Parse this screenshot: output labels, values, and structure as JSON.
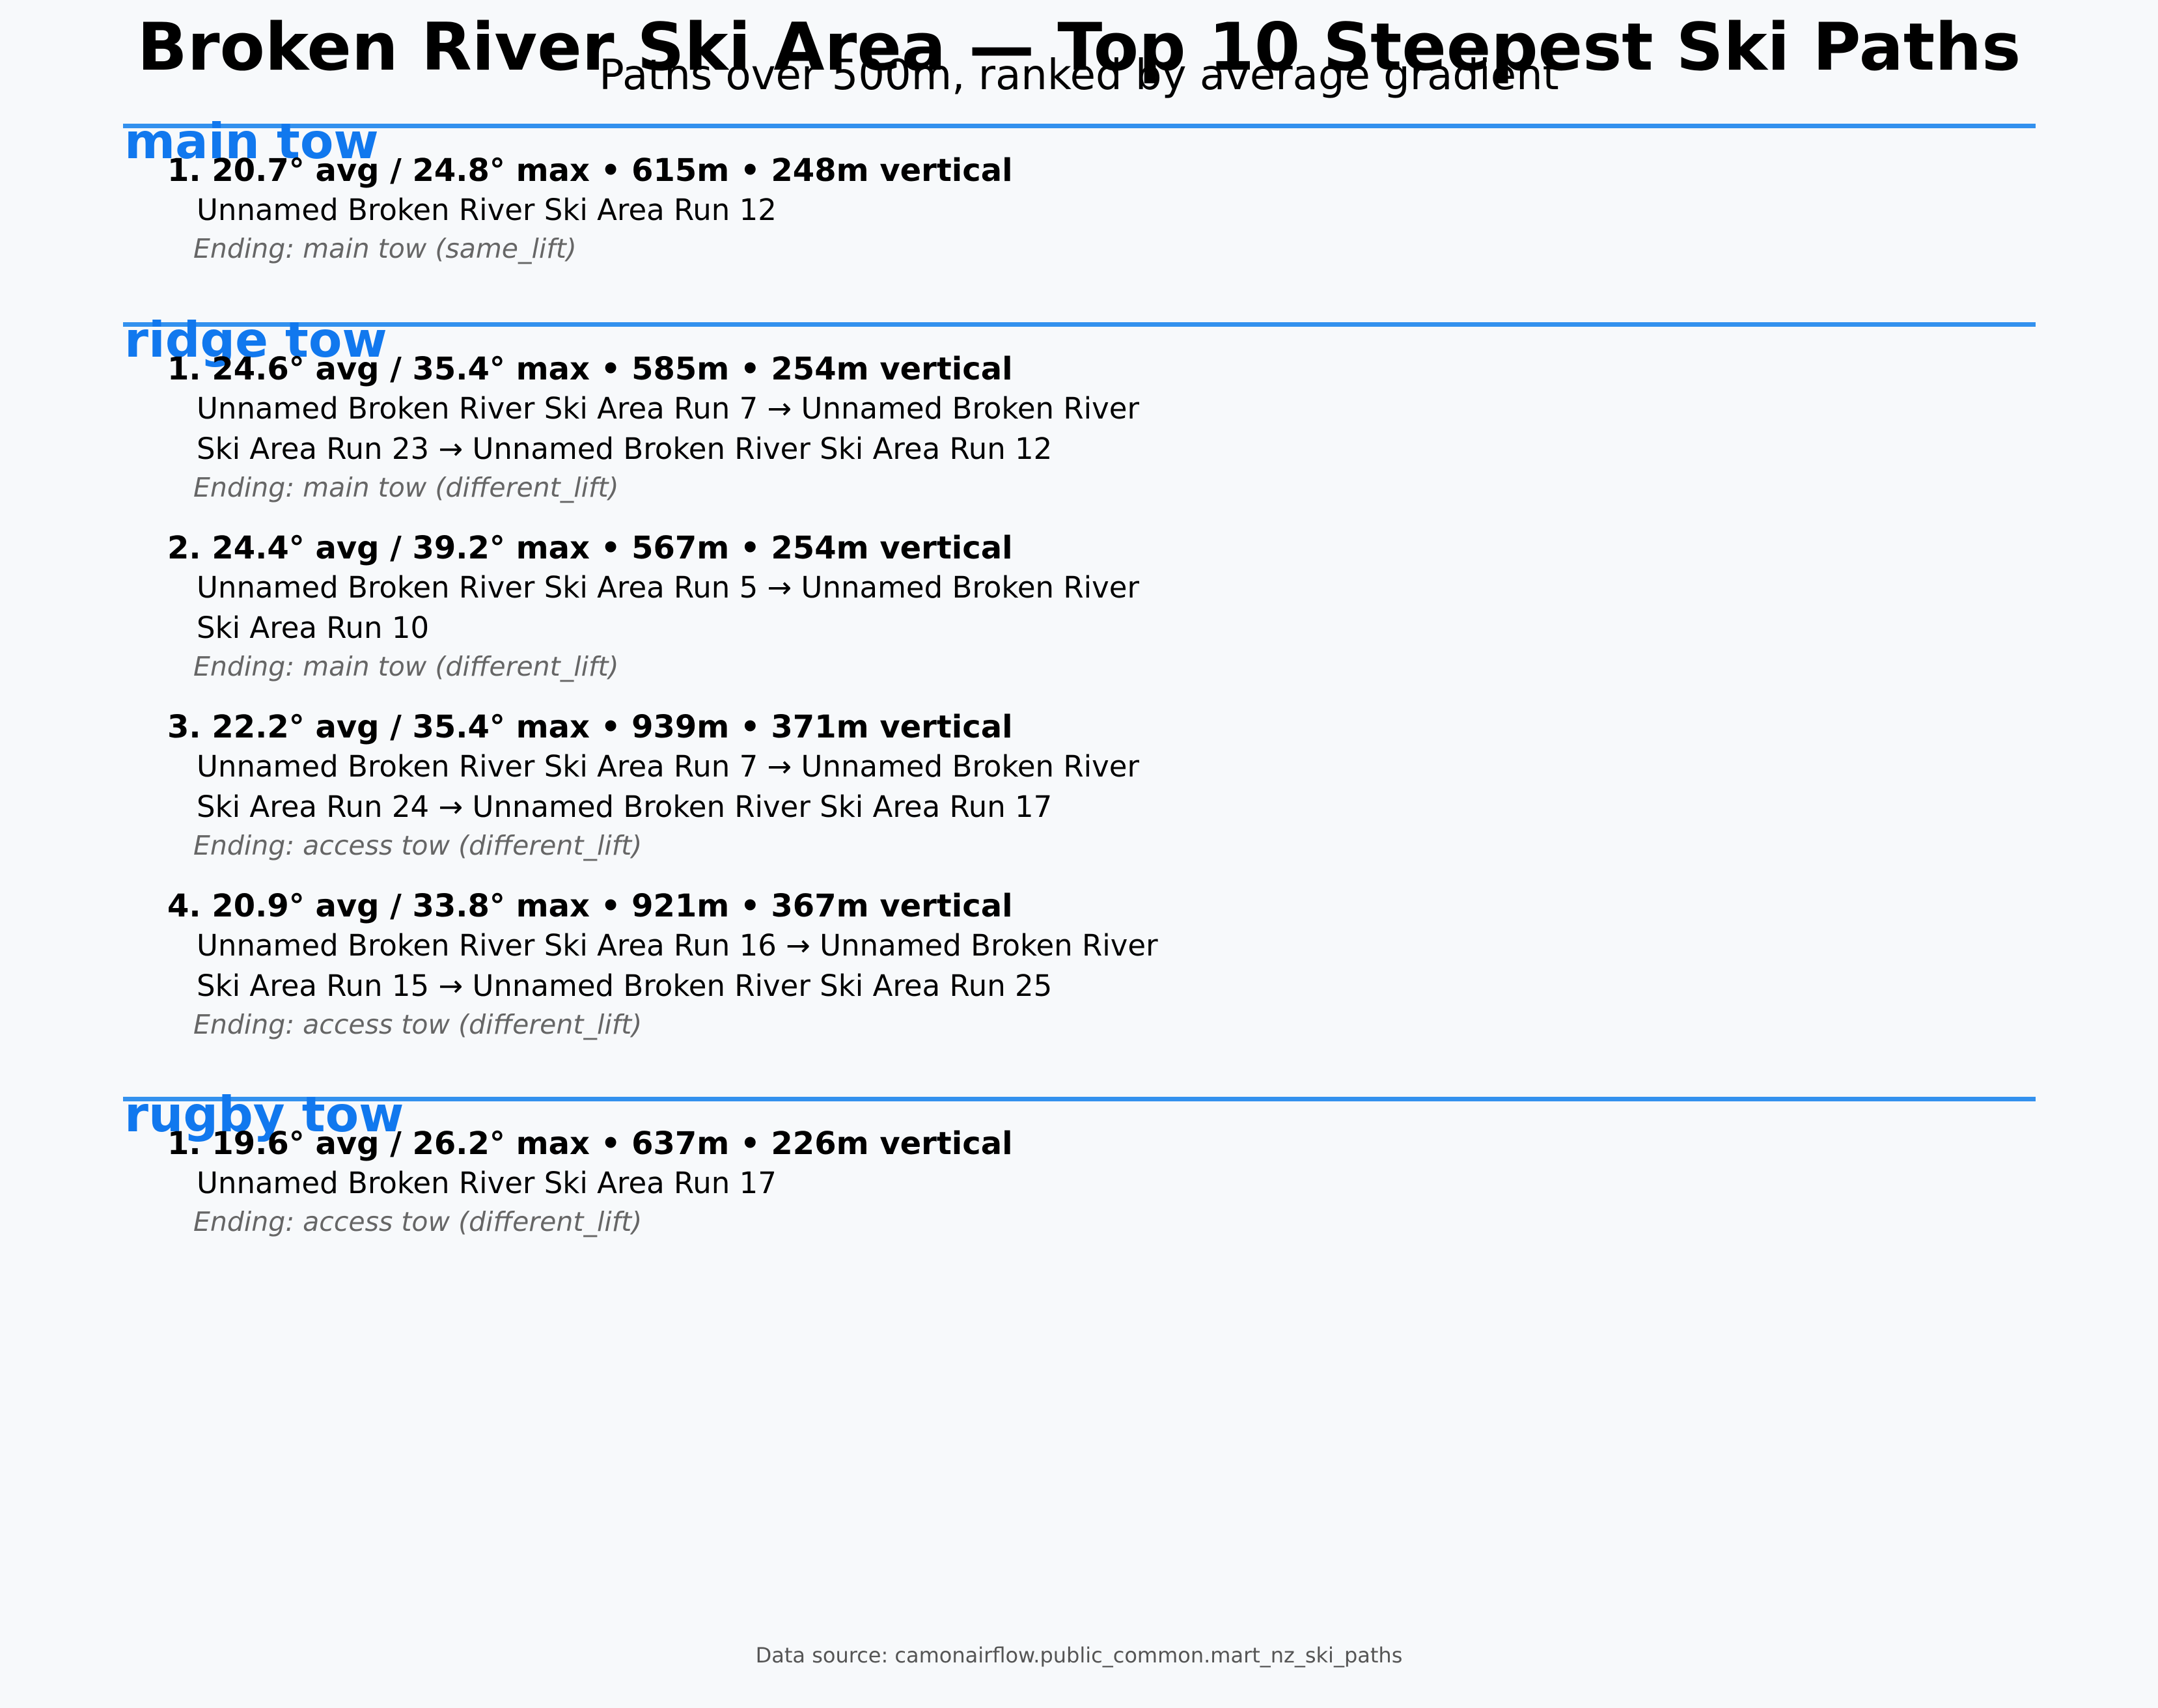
{
  "title": "Broken River Ski Area — Top 10 Steepest Ski Paths",
  "subtitle": "Paths over 500m, ranked by average gradient",
  "sections": [
    {
      "name": "main tow",
      "paths": [
        {
          "header": "1. 20.7° avg / 24.8° max • 615m • 248m vertical",
          "route_lines": [
            "Unnamed Broken River Ski Area Run 12"
          ],
          "ending": "Ending: main tow (same_lift)"
        }
      ]
    },
    {
      "name": "ridge tow",
      "paths": [
        {
          "header": "1. 24.6° avg / 35.4° max • 585m • 254m vertical",
          "route_lines": [
            "Unnamed Broken River Ski Area Run 7 → Unnamed Broken River",
            "Ski Area Run 23 → Unnamed Broken River Ski Area Run 12"
          ],
          "ending": "Ending: main tow (different_lift)"
        },
        {
          "header": "2. 24.4° avg / 39.2° max • 567m • 254m vertical",
          "route_lines": [
            "Unnamed Broken River Ski Area Run 5 → Unnamed Broken River",
            "Ski Area Run 10"
          ],
          "ending": "Ending: main tow (different_lift)"
        },
        {
          "header": "3. 22.2° avg / 35.4° max • 939m • 371m vertical",
          "route_lines": [
            "Unnamed Broken River Ski Area Run 7 → Unnamed Broken River",
            "Ski Area Run 24 → Unnamed Broken River Ski Area Run 17"
          ],
          "ending": "Ending: access tow (different_lift)"
        },
        {
          "header": "4. 20.9° avg / 33.8° max • 921m • 367m vertical",
          "route_lines": [
            "Unnamed Broken River Ski Area Run 16 → Unnamed Broken River",
            "Ski Area Run 15 → Unnamed Broken River Ski Area Run 25"
          ],
          "ending": "Ending: access tow (different_lift)"
        }
      ]
    },
    {
      "name": "rugby tow",
      "paths": [
        {
          "header": "1. 19.6° avg / 26.2° max • 637m • 226m vertical",
          "route_lines": [
            "Unnamed Broken River Ski Area Run 17"
          ],
          "ending": "Ending: access tow (different_lift)"
        }
      ]
    }
  ],
  "footer": "Data source: camonairflow.public_common.mart_nz_ski_paths",
  "colors": {
    "accent_rule": "#3391ee",
    "section_title": "#1178ee",
    "ending_text": "#666666",
    "background": "#f7f9fb"
  }
}
